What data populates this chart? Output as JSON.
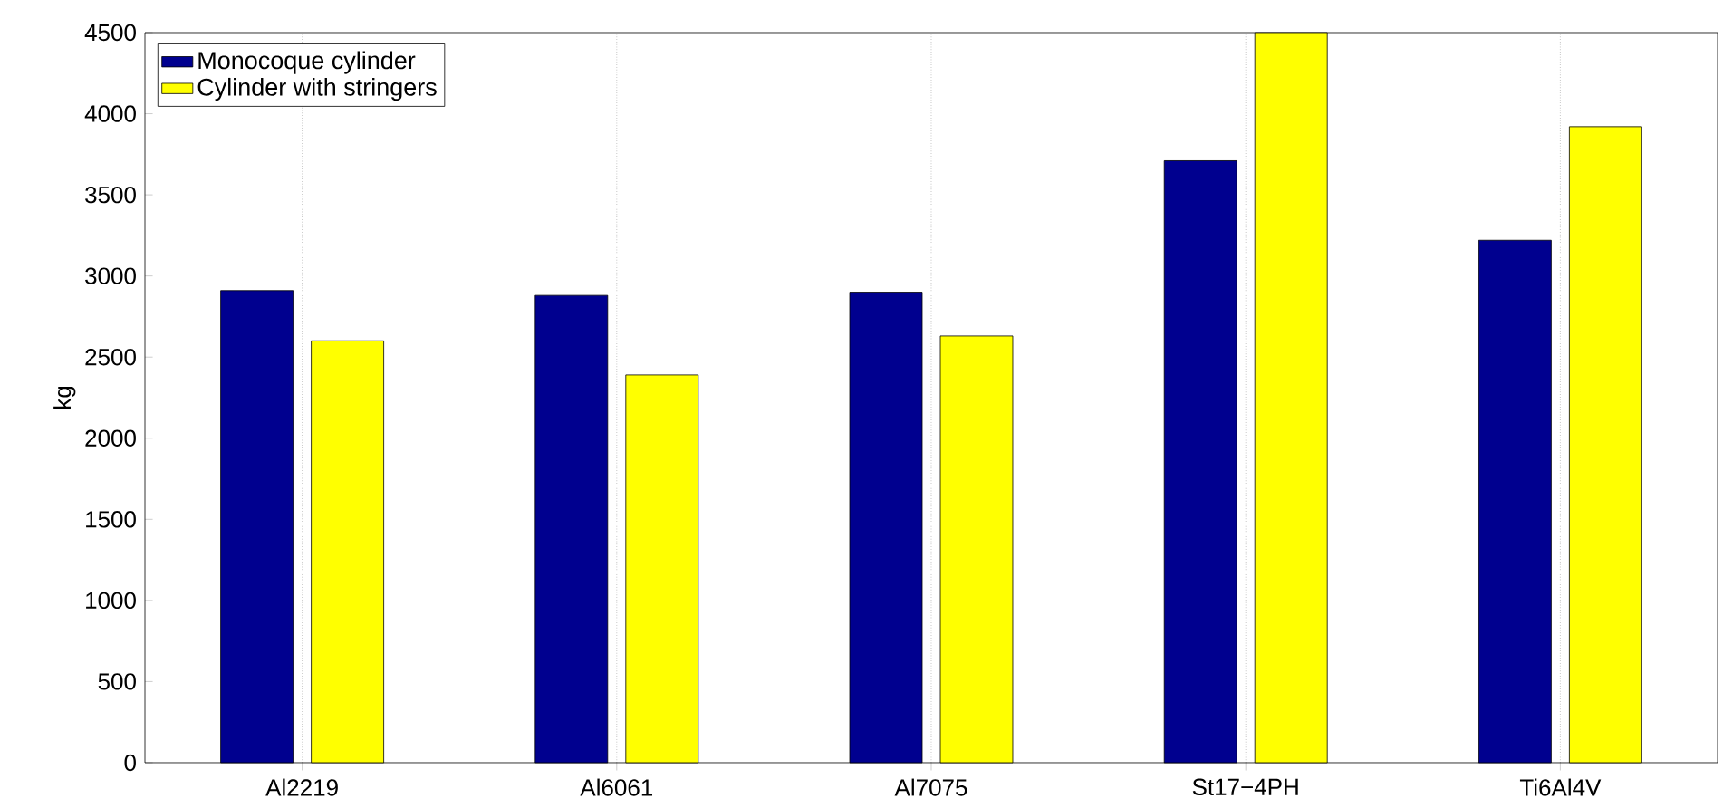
{
  "chart_data": {
    "type": "bar",
    "ylabel": "kg",
    "categories": [
      "Al2219",
      "Al6061",
      "Al7075",
      "St17−4PH",
      "Ti6Al4V"
    ],
    "series": [
      {
        "name": "Monocoque cylinder",
        "color": "#00008f",
        "values": [
          2910,
          2880,
          2900,
          3710,
          3220
        ]
      },
      {
        "name": "Cylinder with stringers",
        "color": "#ffff00",
        "values": [
          2600,
          2390,
          2630,
          4500,
          3920
        ]
      }
    ],
    "ylim": [
      0,
      4500
    ],
    "yticks": [
      0,
      500,
      1000,
      1500,
      2000,
      2500,
      3000,
      3500,
      4000,
      4500
    ],
    "grid": "x",
    "legend": "top left"
  }
}
